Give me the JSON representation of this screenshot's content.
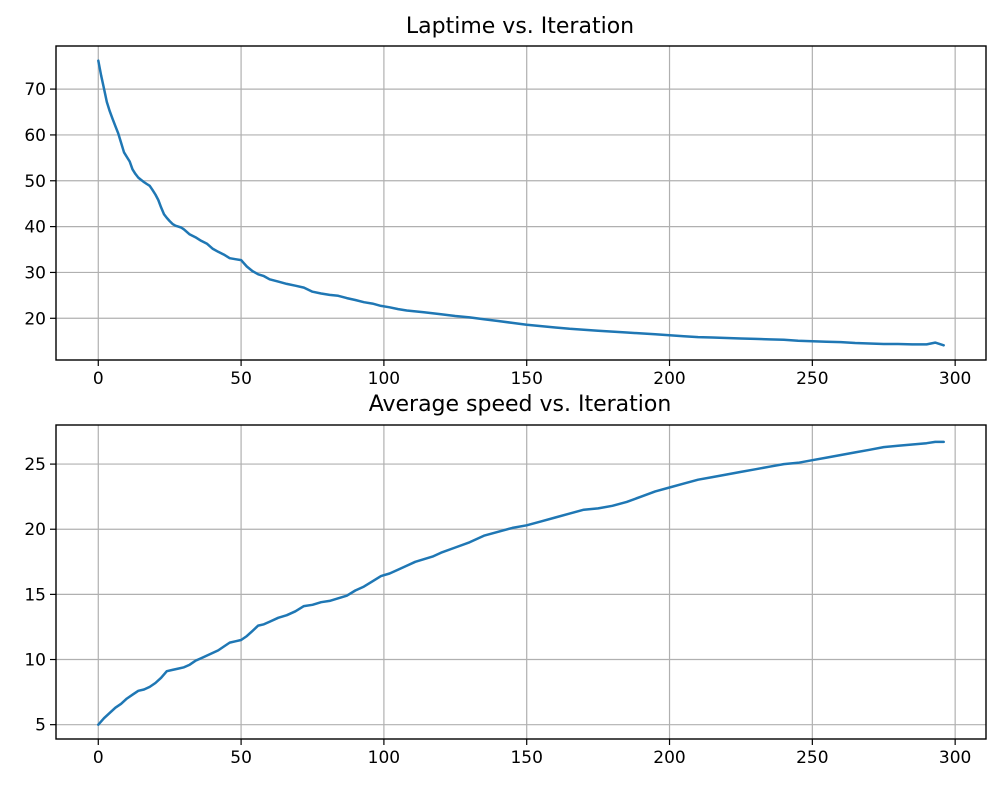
{
  "colors": {
    "series": "#1f77b4",
    "grid": "#b0b0b0"
  },
  "chart_data": [
    {
      "type": "line",
      "title": "Laptime vs. Iteration",
      "xlabel": "",
      "ylabel": "",
      "grid": true,
      "xlim": [
        -14.8,
        310.8
      ],
      "ylim": [
        10.9,
        79.4
      ],
      "xticks": [
        0,
        50,
        100,
        150,
        200,
        250,
        300
      ],
      "yticks": [
        20,
        30,
        40,
        50,
        60,
        70
      ],
      "series": [
        {
          "x": [
            0,
            1,
            2,
            3,
            4,
            5,
            6,
            7,
            8,
            9,
            10,
            11,
            12,
            13,
            14,
            15,
            16,
            17,
            18,
            19,
            20,
            21,
            22,
            23,
            24,
            25,
            26,
            27,
            28,
            29,
            30,
            32,
            34,
            36,
            38,
            40,
            42,
            44,
            46,
            48,
            50,
            52,
            54,
            56,
            58,
            60,
            63,
            66,
            69,
            72,
            75,
            78,
            81,
            84,
            87,
            90,
            93,
            96,
            99,
            102,
            105,
            108,
            111,
            114,
            117,
            120,
            125,
            130,
            135,
            140,
            145,
            150,
            155,
            160,
            165,
            170,
            175,
            180,
            185,
            190,
            195,
            200,
            205,
            210,
            215,
            220,
            225,
            230,
            235,
            240,
            245,
            250,
            255,
            260,
            265,
            270,
            275,
            280,
            285,
            290,
            293,
            296
          ],
          "y": [
            76.2,
            73.0,
            70.1,
            67.2,
            65.2,
            63.5,
            61.9,
            60.3,
            58.3,
            56.2,
            55.2,
            54.2,
            52.5,
            51.5,
            50.7,
            50.2,
            49.7,
            49.3,
            48.9,
            48.0,
            47.0,
            45.8,
            44.2,
            42.7,
            41.9,
            41.2,
            40.6,
            40.2,
            40.0,
            39.8,
            39.4,
            38.3,
            37.7,
            36.9,
            36.3,
            35.2,
            34.5,
            33.9,
            33.1,
            32.9,
            32.7,
            31.3,
            30.3,
            29.6,
            29.2,
            28.5,
            28.0,
            27.5,
            27.1,
            26.7,
            25.8,
            25.4,
            25.1,
            24.9,
            24.4,
            24.0,
            23.5,
            23.2,
            22.7,
            22.4,
            22.0,
            21.7,
            21.5,
            21.3,
            21.1,
            20.9,
            20.5,
            20.2,
            19.8,
            19.4,
            19.0,
            18.6,
            18.3,
            18.0,
            17.7,
            17.5,
            17.3,
            17.1,
            16.9,
            16.7,
            16.5,
            16.3,
            16.1,
            15.9,
            15.8,
            15.7,
            15.6,
            15.5,
            15.4,
            15.3,
            15.1,
            15.0,
            14.9,
            14.8,
            14.6,
            14.5,
            14.4,
            14.4,
            14.3,
            14.3,
            14.7,
            14.1
          ]
        }
      ]
    },
    {
      "type": "line",
      "title": "Average speed vs. Iteration",
      "xlabel": "",
      "ylabel": "",
      "grid": true,
      "xlim": [
        -14.8,
        310.8
      ],
      "ylim": [
        3.9,
        28.0
      ],
      "xticks": [
        0,
        50,
        100,
        150,
        200,
        250,
        300
      ],
      "yticks": [
        5,
        10,
        15,
        20,
        25
      ],
      "series": [
        {
          "x": [
            0,
            2,
            4,
            6,
            8,
            10,
            12,
            14,
            16,
            18,
            20,
            22,
            24,
            26,
            28,
            30,
            32,
            34,
            36,
            38,
            40,
            42,
            44,
            46,
            48,
            50,
            52,
            54,
            56,
            58,
            60,
            63,
            66,
            69,
            72,
            75,
            78,
            81,
            84,
            87,
            90,
            93,
            96,
            99,
            102,
            105,
            108,
            111,
            114,
            117,
            120,
            125,
            130,
            135,
            140,
            145,
            150,
            155,
            160,
            165,
            170,
            175,
            180,
            185,
            190,
            195,
            200,
            205,
            210,
            215,
            220,
            225,
            230,
            235,
            240,
            245,
            250,
            255,
            260,
            265,
            270,
            275,
            280,
            285,
            290,
            293,
            296
          ],
          "y": [
            5.0,
            5.5,
            5.9,
            6.3,
            6.6,
            7.0,
            7.3,
            7.6,
            7.7,
            7.9,
            8.2,
            8.6,
            9.1,
            9.2,
            9.3,
            9.4,
            9.6,
            9.9,
            10.1,
            10.3,
            10.5,
            10.7,
            11.0,
            11.3,
            11.4,
            11.5,
            11.8,
            12.2,
            12.6,
            12.7,
            12.9,
            13.2,
            13.4,
            13.7,
            14.1,
            14.2,
            14.4,
            14.5,
            14.7,
            14.9,
            15.3,
            15.6,
            16.0,
            16.4,
            16.6,
            16.9,
            17.2,
            17.5,
            17.7,
            17.9,
            18.2,
            18.6,
            19.0,
            19.5,
            19.8,
            20.1,
            20.3,
            20.6,
            20.9,
            21.2,
            21.5,
            21.6,
            21.8,
            22.1,
            22.5,
            22.9,
            23.2,
            23.5,
            23.8,
            24.0,
            24.2,
            24.4,
            24.6,
            24.8,
            25.0,
            25.1,
            25.3,
            25.5,
            25.7,
            25.9,
            26.1,
            26.3,
            26.4,
            26.5,
            26.6,
            26.7,
            26.7
          ]
        }
      ]
    }
  ]
}
